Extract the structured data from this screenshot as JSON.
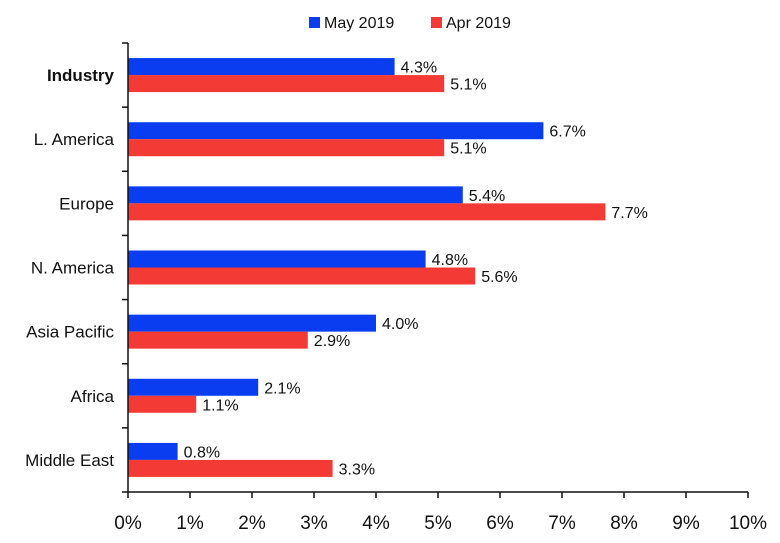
{
  "chart_data": {
    "type": "bar",
    "orientation": "horizontal",
    "categories": [
      "Industry",
      "L. America",
      "Europe",
      "N. America",
      "Asia Pacific",
      "Africa",
      "Middle East"
    ],
    "emphasized_category": "Industry",
    "series": [
      {
        "name": "May 2019",
        "color": "#0a3cf0",
        "values": [
          4.3,
          6.7,
          5.4,
          4.8,
          4.0,
          2.1,
          0.8
        ],
        "labels": [
          "4.3%",
          "6.7%",
          "5.4%",
          "4.8%",
          "4.0%",
          "2.1%",
          "0.8%"
        ]
      },
      {
        "name": "Apr 2019",
        "color": "#f43a35",
        "values": [
          5.1,
          5.1,
          7.7,
          5.6,
          2.9,
          1.1,
          3.3
        ],
        "labels": [
          "5.1%",
          "5.1%",
          "7.7%",
          "5.6%",
          "2.9%",
          "1.1%",
          "3.3%"
        ]
      }
    ],
    "xlim": [
      0,
      10
    ],
    "xticks": [
      0,
      1,
      2,
      3,
      4,
      5,
      6,
      7,
      8,
      9,
      10
    ],
    "xtick_labels": [
      "0%",
      "1%",
      "2%",
      "3%",
      "4%",
      "5%",
      "6%",
      "7%",
      "8%",
      "9%",
      "10%"
    ],
    "legend": {
      "position": "top-center"
    },
    "grid": false
  }
}
